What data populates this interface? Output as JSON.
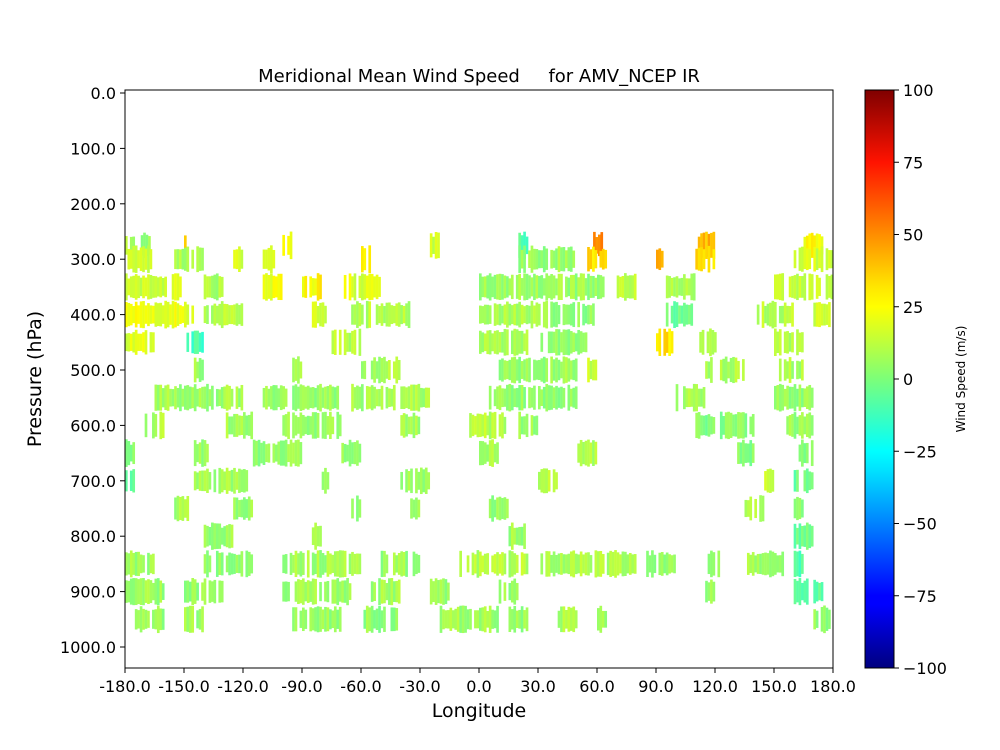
{
  "chart_data": {
    "type": "heatmap",
    "title": "Meridional Mean Wind Speed     for AMV_NCEP IR",
    "xlabel": "Longitude",
    "ylabel": "Pressure (hPa)",
    "xlim": [
      -180,
      180
    ],
    "ylim": [
      1000,
      0
    ],
    "xticks": [
      "-180.0",
      "-150.0",
      "-120.0",
      "-90.0",
      "-60.0",
      "-30.0",
      "0.0",
      "30.0",
      "60.0",
      "90.0",
      "120.0",
      "150.0",
      "180.0"
    ],
    "yticks": [
      "0.0",
      "100.0",
      "200.0",
      "300.0",
      "400.0",
      "500.0",
      "600.0",
      "700.0",
      "800.0",
      "900.0",
      "1000.0"
    ],
    "colorbar": {
      "label": "Wind Speed (m/s)",
      "range": [
        -100,
        100
      ],
      "ticks": [
        "100",
        "75",
        "50",
        "25",
        "0",
        "−25",
        "−50",
        "−75",
        "−100"
      ],
      "colormap": "jet"
    },
    "data_extent": {
      "pressure_min": 125,
      "pressure_max": 975
    },
    "layers": [
      {
        "pressure": 275,
        "spans": [
          [
            -180,
            -175,
            10
          ],
          [
            -172,
            -168,
            5
          ],
          [
            -150,
            -148,
            35
          ],
          [
            -100,
            -96,
            20
          ],
          [
            -25,
            -20,
            15
          ],
          [
            20,
            25,
            -10
          ],
          [
            58,
            63,
            45
          ],
          [
            110,
            120,
            38
          ],
          [
            165,
            175,
            25
          ]
        ]
      },
      {
        "pressure": 300,
        "spans": [
          [
            -180,
            -165,
            12
          ],
          [
            -155,
            -140,
            8
          ],
          [
            -125,
            -120,
            15
          ],
          [
            -110,
            -104,
            20
          ],
          [
            -60,
            -55,
            30
          ],
          [
            20,
            50,
            5
          ],
          [
            55,
            65,
            30
          ],
          [
            90,
            93,
            40
          ],
          [
            110,
            120,
            32
          ],
          [
            160,
            180,
            15
          ]
        ]
      },
      {
        "pressure": 350,
        "spans": [
          [
            -180,
            -150,
            15
          ],
          [
            -140,
            -130,
            8
          ],
          [
            -110,
            -100,
            20
          ],
          [
            -90,
            -80,
            25
          ],
          [
            -70,
            -50,
            18
          ],
          [
            0,
            65,
            5
          ],
          [
            70,
            80,
            12
          ],
          [
            95,
            110,
            10
          ],
          [
            150,
            180,
            12
          ]
        ]
      },
      {
        "pressure": 400,
        "spans": [
          [
            -180,
            -145,
            20
          ],
          [
            -140,
            -120,
            10
          ],
          [
            -85,
            -78,
            15
          ],
          [
            -65,
            -35,
            10
          ],
          [
            0,
            30,
            8
          ],
          [
            30,
            60,
            3
          ],
          [
            95,
            110,
            -5
          ],
          [
            140,
            160,
            10
          ],
          [
            170,
            178,
            15
          ]
        ]
      },
      {
        "pressure": 450,
        "spans": [
          [
            -180,
            -165,
            18
          ],
          [
            -150,
            -140,
            -12
          ],
          [
            -75,
            -60,
            10
          ],
          [
            0,
            25,
            8
          ],
          [
            30,
            55,
            3
          ],
          [
            90,
            100,
            30
          ],
          [
            112,
            120,
            10
          ],
          [
            150,
            165,
            10
          ]
        ]
      },
      {
        "pressure": 500,
        "spans": [
          [
            -145,
            -140,
            5
          ],
          [
            -95,
            -90,
            6
          ],
          [
            -60,
            -40,
            8
          ],
          [
            10,
            50,
            5
          ],
          [
            55,
            60,
            12
          ],
          [
            115,
            135,
            8
          ],
          [
            150,
            165,
            8
          ]
        ]
      },
      {
        "pressure": 550,
        "spans": [
          [
            -165,
            -120,
            6
          ],
          [
            -110,
            -70,
            4
          ],
          [
            -65,
            -25,
            7
          ],
          [
            5,
            50,
            3
          ],
          [
            100,
            115,
            8
          ],
          [
            150,
            170,
            4
          ]
        ]
      },
      {
        "pressure": 600,
        "spans": [
          [
            -170,
            -160,
            8
          ],
          [
            -130,
            -115,
            6
          ],
          [
            -100,
            -70,
            5
          ],
          [
            -40,
            -30,
            7
          ],
          [
            -5,
            15,
            10
          ],
          [
            20,
            30,
            5
          ],
          [
            110,
            140,
            0
          ],
          [
            155,
            170,
            5
          ]
        ]
      },
      {
        "pressure": 650,
        "spans": [
          [
            -180,
            -175,
            3
          ],
          [
            -145,
            -138,
            6
          ],
          [
            -115,
            -90,
            4
          ],
          [
            -70,
            -60,
            5
          ],
          [
            0,
            10,
            6
          ],
          [
            50,
            60,
            8
          ],
          [
            130,
            140,
            2
          ],
          [
            160,
            170,
            0
          ]
        ]
      },
      {
        "pressure": 700,
        "spans": [
          [
            -180,
            -176,
            -10
          ],
          [
            -145,
            -115,
            6
          ],
          [
            -80,
            -75,
            4
          ],
          [
            -40,
            -25,
            5
          ],
          [
            30,
            40,
            10
          ],
          [
            145,
            150,
            12
          ],
          [
            160,
            170,
            -5
          ]
        ]
      },
      {
        "pressure": 750,
        "spans": [
          [
            -155,
            -148,
            6
          ],
          [
            -125,
            -115,
            5
          ],
          [
            -65,
            -60,
            4
          ],
          [
            -35,
            -30,
            6
          ],
          [
            5,
            15,
            5
          ],
          [
            135,
            145,
            8
          ],
          [
            160,
            165,
            0
          ]
        ]
      },
      {
        "pressure": 800,
        "spans": [
          [
            -140,
            -125,
            5
          ],
          [
            -85,
            -80,
            6
          ],
          [
            15,
            25,
            5
          ],
          [
            160,
            170,
            -5
          ]
        ]
      },
      {
        "pressure": 850,
        "spans": [
          [
            -180,
            -165,
            5
          ],
          [
            -140,
            -115,
            4
          ],
          [
            -100,
            -60,
            6
          ],
          [
            -50,
            -30,
            5
          ],
          [
            -10,
            25,
            10
          ],
          [
            30,
            80,
            8
          ],
          [
            85,
            100,
            5
          ],
          [
            115,
            122,
            4
          ],
          [
            135,
            155,
            6
          ],
          [
            160,
            165,
            -8
          ]
        ]
      },
      {
        "pressure": 900,
        "spans": [
          [
            -180,
            -160,
            5
          ],
          [
            -150,
            -130,
            4
          ],
          [
            -100,
            -65,
            5
          ],
          [
            -55,
            -40,
            6
          ],
          [
            -25,
            -15,
            4
          ],
          [
            10,
            20,
            5
          ],
          [
            115,
            120,
            5
          ],
          [
            160,
            175,
            -5
          ]
        ]
      },
      {
        "pressure": 950,
        "spans": [
          [
            -175,
            -160,
            4
          ],
          [
            -150,
            -140,
            5
          ],
          [
            -95,
            -70,
            4
          ],
          [
            -60,
            -40,
            3
          ],
          [
            -20,
            10,
            6
          ],
          [
            15,
            25,
            5
          ],
          [
            40,
            50,
            7
          ],
          [
            60,
            65,
            5
          ],
          [
            170,
            178,
            3
          ]
        ]
      }
    ]
  }
}
